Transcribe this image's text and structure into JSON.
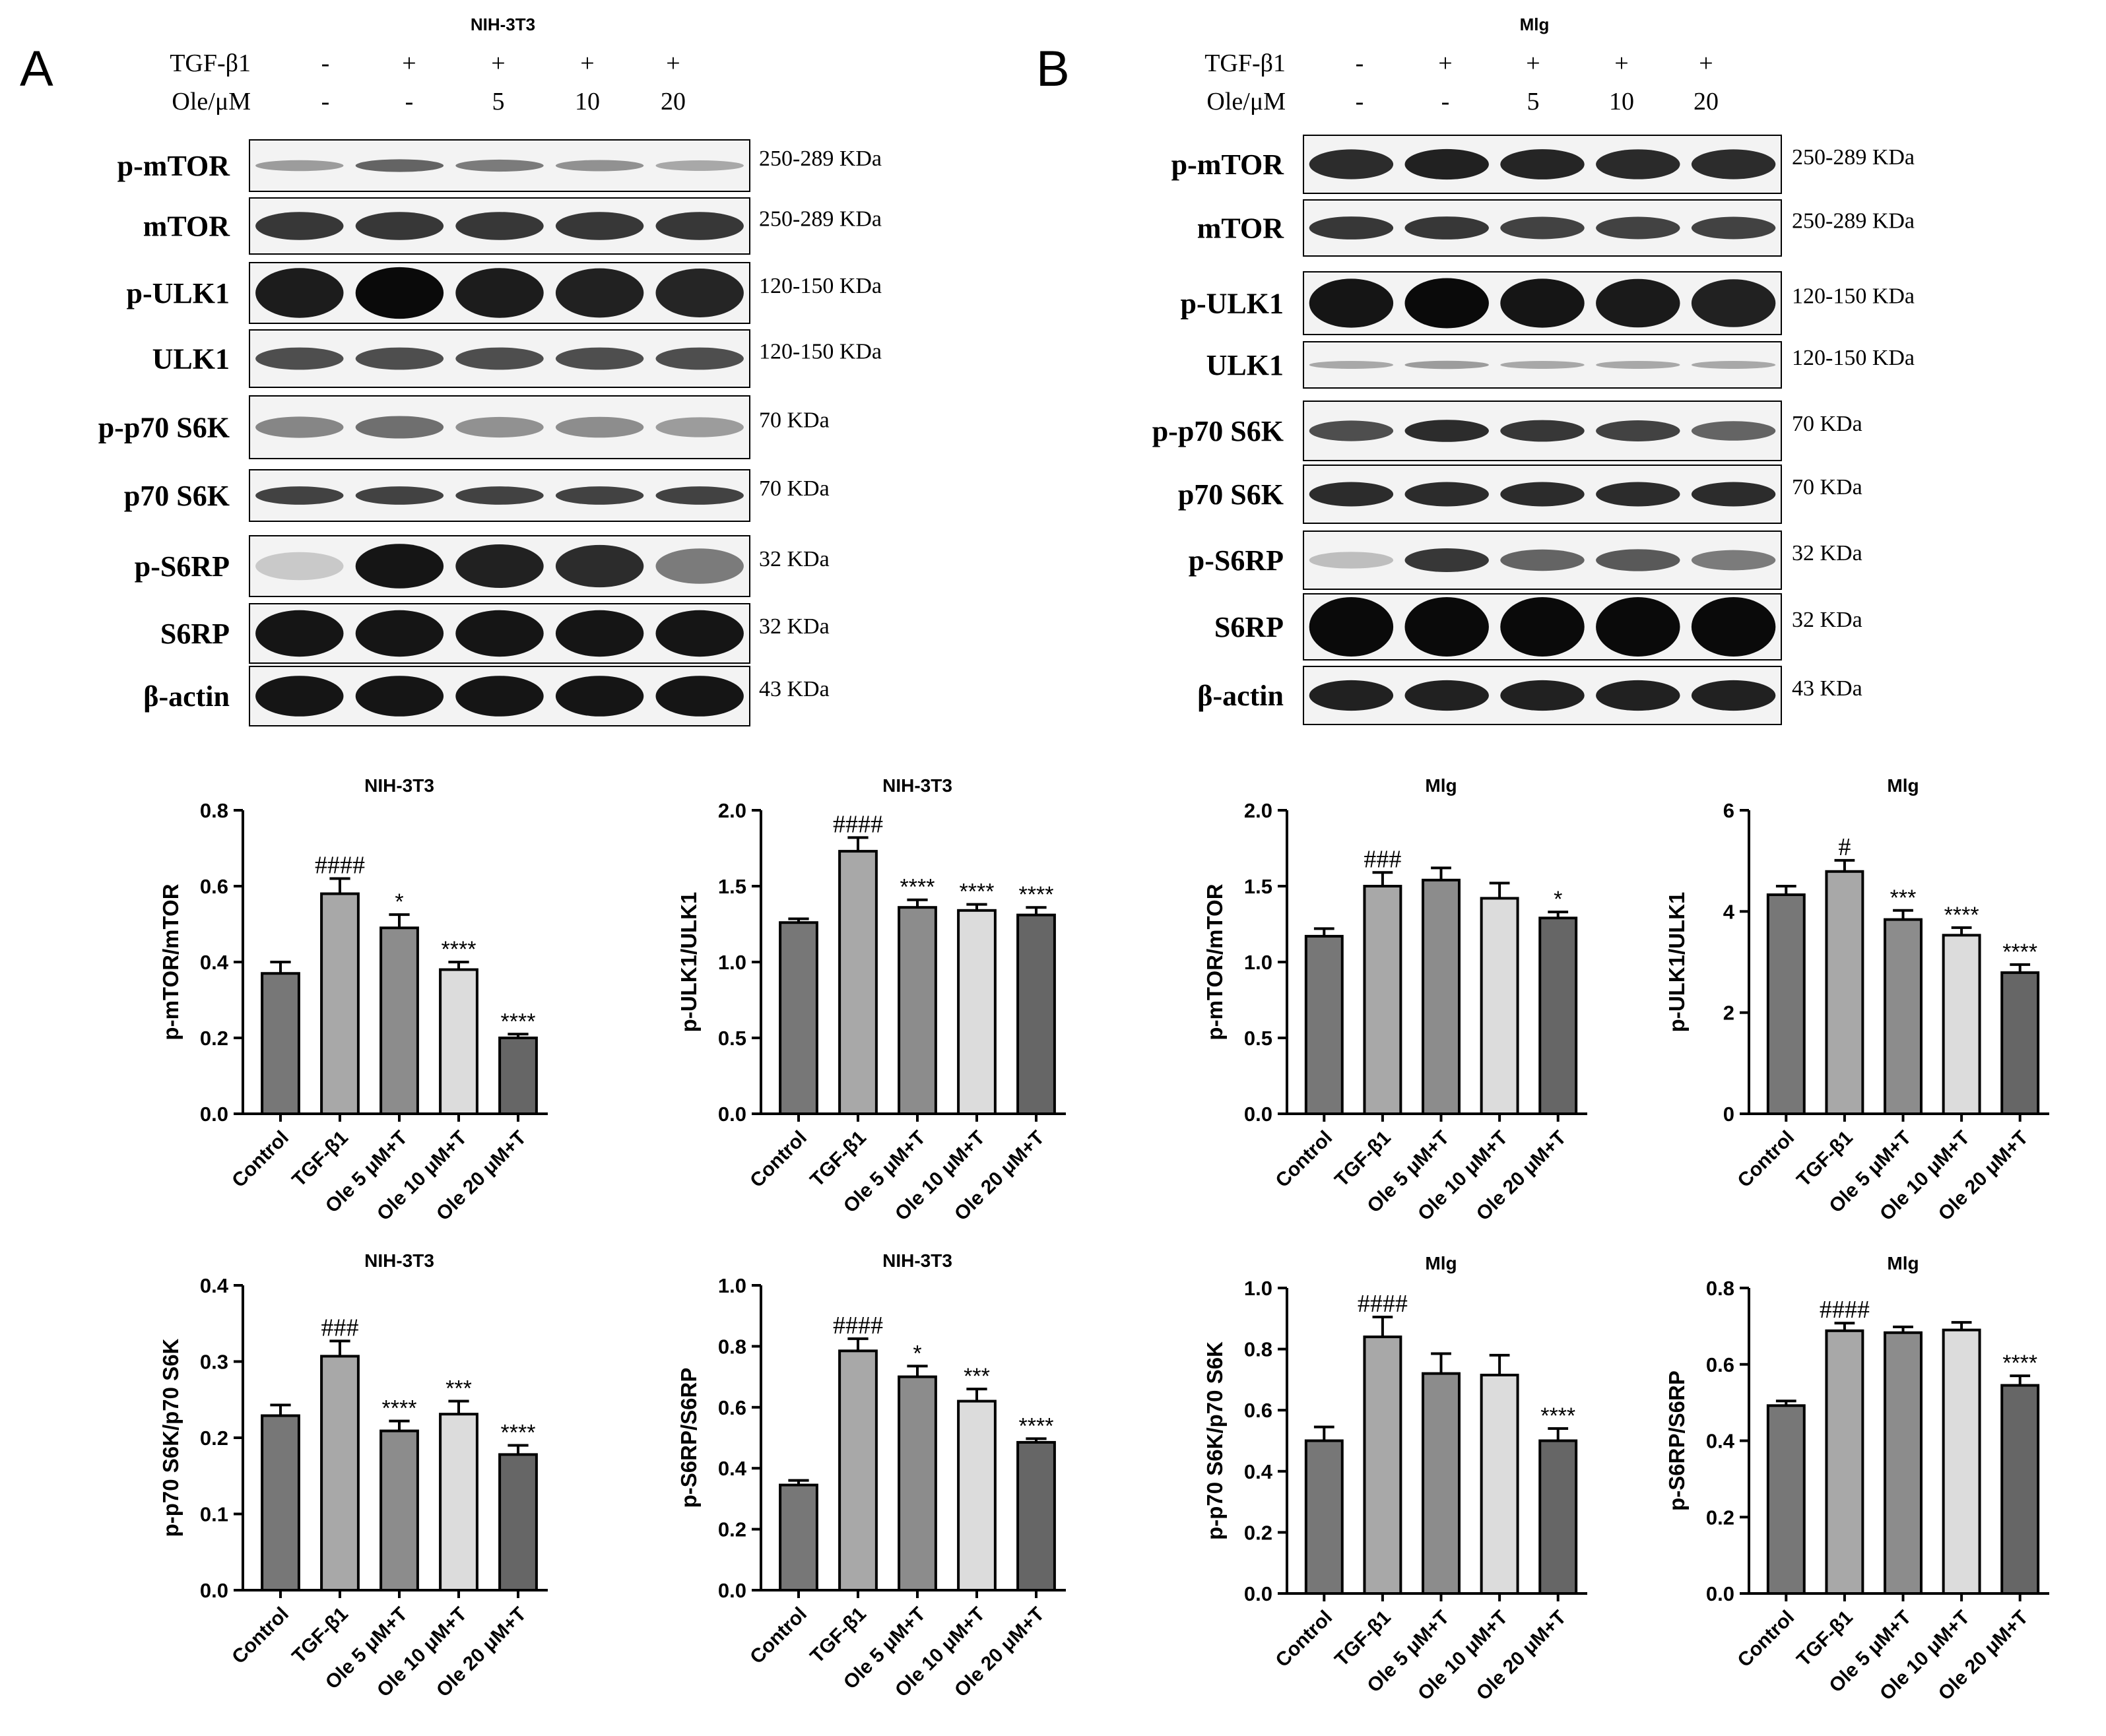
{
  "figure": {
    "panels": [
      {
        "letter": "A",
        "cell_line": "NIH-3T3",
        "treatments": [
          {
            "label": "TGF-β1",
            "values": [
              "-",
              "+",
              "+",
              "+",
              "+"
            ]
          },
          {
            "label": "Ole/μM",
            "values": [
              "-",
              "-",
              "5",
              "10",
              "20"
            ]
          }
        ],
        "blots": [
          {
            "protein": "p-mTOR",
            "size": "250-289 KDa",
            "band_intensity": [
              0.35,
              0.6,
              0.5,
              0.4,
              0.3
            ],
            "band_thickness": 0.3
          },
          {
            "protein": "mTOR",
            "size": "250-289 KDa",
            "band_intensity": [
              0.8,
              0.8,
              0.8,
              0.8,
              0.8
            ],
            "band_thickness": 0.55
          },
          {
            "protein": "p-ULK1",
            "size": "120-150 KDa",
            "band_intensity": [
              0.92,
              1.0,
              0.92,
              0.9,
              0.88
            ],
            "band_thickness": 0.85
          },
          {
            "protein": "ULK1",
            "size": "120-150 KDa",
            "band_intensity": [
              0.7,
              0.7,
              0.7,
              0.7,
              0.7
            ],
            "band_thickness": 0.45
          },
          {
            "protein": "p-p70 S6K",
            "size": "70 KDa",
            "band_intensity": [
              0.45,
              0.55,
              0.4,
              0.42,
              0.35
            ],
            "band_thickness": 0.45
          },
          {
            "protein": "p70 S6K",
            "size": "70 KDa",
            "band_intensity": [
              0.75,
              0.75,
              0.75,
              0.75,
              0.75
            ],
            "band_thickness": 0.4
          },
          {
            "protein": "p-S6RP",
            "size": "32 KDa",
            "band_intensity": [
              0.15,
              0.95,
              0.9,
              0.85,
              0.5
            ],
            "band_thickness": 0.75
          },
          {
            "protein": "S6RP",
            "size": "32 KDa",
            "band_intensity": [
              0.95,
              0.95,
              0.95,
              0.95,
              0.95
            ],
            "band_thickness": 0.8
          },
          {
            "protein": "β-actin",
            "size": "43 KDa",
            "band_intensity": [
              0.95,
              0.95,
              0.95,
              0.95,
              0.95
            ],
            "band_thickness": 0.7
          }
        ]
      },
      {
        "letter": "B",
        "cell_line": "Mlg",
        "treatments": [
          {
            "label": "TGF-β1",
            "values": [
              "-",
              "+",
              "+",
              "+",
              "+"
            ]
          },
          {
            "label": "Ole/μM",
            "values": [
              "-",
              "-",
              "5",
              "10",
              "20"
            ]
          }
        ],
        "blots": [
          {
            "protein": "p-mTOR",
            "size": "250-289 KDa",
            "band_intensity": [
              0.85,
              0.9,
              0.88,
              0.86,
              0.85
            ],
            "band_thickness": 0.55
          },
          {
            "protein": "mTOR",
            "size": "250-289 KDa",
            "band_intensity": [
              0.8,
              0.8,
              0.75,
              0.75,
              0.75
            ],
            "band_thickness": 0.45
          },
          {
            "protein": "p-ULK1",
            "size": "120-150 KDa",
            "band_intensity": [
              0.95,
              1.0,
              0.95,
              0.93,
              0.9
            ],
            "band_thickness": 0.8
          },
          {
            "protein": "ULK1",
            "size": "120-150 KDa",
            "band_intensity": [
              0.3,
              0.35,
              0.3,
              0.3,
              0.3
            ],
            "band_thickness": 0.25
          },
          {
            "protein": "p-p70 S6K",
            "size": "70 KDa",
            "band_intensity": [
              0.7,
              0.85,
              0.8,
              0.75,
              0.6
            ],
            "band_thickness": 0.4
          },
          {
            "protein": "p70 S6K",
            "size": "70 KDa",
            "band_intensity": [
              0.85,
              0.85,
              0.85,
              0.85,
              0.85
            ],
            "band_thickness": 0.45
          },
          {
            "protein": "p-S6RP",
            "size": "32 KDa",
            "band_intensity": [
              0.2,
              0.8,
              0.6,
              0.65,
              0.5
            ],
            "band_thickness": 0.45
          },
          {
            "protein": "S6RP",
            "size": "32 KDa",
            "band_intensity": [
              1.0,
              1.0,
              1.0,
              1.0,
              1.0
            ],
            "band_thickness": 0.9
          },
          {
            "protein": "β-actin",
            "size": "43 KDa",
            "band_intensity": [
              0.9,
              0.9,
              0.9,
              0.9,
              0.9
            ],
            "band_thickness": 0.55
          }
        ]
      }
    ]
  },
  "colors": {
    "bar_fills": [
      "#777777",
      "#a8a8a8",
      "#8c8c8c",
      "#dcdcdc",
      "#666666"
    ],
    "stroke": "#000000"
  },
  "chart_data": [
    {
      "type": "bar",
      "title": "NIH-3T3",
      "ylabel": "p-mTOR/mTOR",
      "ylim": [
        0,
        0.8
      ],
      "yticks": [
        "0.0",
        "0.2",
        "0.4",
        "0.6",
        "0.8"
      ],
      "categories": [
        "Control",
        "TGF-β1",
        "Ole 5 μM+T",
        "Ole 10 μM+T",
        "Ole 20 μM+T"
      ],
      "values": [
        0.37,
        0.58,
        0.49,
        0.38,
        0.2
      ],
      "errors": [
        0.03,
        0.04,
        0.035,
        0.02,
        0.01
      ],
      "annotations": [
        "",
        "####",
        "*",
        "****",
        "****"
      ]
    },
    {
      "type": "bar",
      "title": "NIH-3T3",
      "ylabel": "p-ULK1/ULK1",
      "ylim": [
        0,
        2.0
      ],
      "yticks": [
        "0.0",
        "0.5",
        "1.0",
        "1.5",
        "2.0"
      ],
      "categories": [
        "Control",
        "TGF-β1",
        "Ole 5 μM+T",
        "Ole 10 μM+T",
        "Ole 20 μM+T"
      ],
      "values": [
        1.26,
        1.73,
        1.36,
        1.34,
        1.31
      ],
      "errors": [
        0.025,
        0.09,
        0.05,
        0.04,
        0.05
      ],
      "annotations": [
        "",
        "####",
        "****",
        "****",
        "****"
      ]
    },
    {
      "type": "bar",
      "title": "Mlg",
      "ylabel": "p-mTOR/mTOR",
      "ylim": [
        0,
        2.0
      ],
      "yticks": [
        "0.0",
        "0.5",
        "1.0",
        "1.5",
        "2.0"
      ],
      "categories": [
        "Control",
        "TGF-β1",
        "Ole 5 μM+T",
        "Ole 10 μM+T",
        "Ole 20 μM+T"
      ],
      "values": [
        1.17,
        1.5,
        1.54,
        1.42,
        1.29
      ],
      "errors": [
        0.05,
        0.09,
        0.08,
        0.1,
        0.04
      ],
      "annotations": [
        "",
        "###",
        "",
        "",
        "*"
      ]
    },
    {
      "type": "bar",
      "title": "Mlg",
      "ylabel": "p-ULK1/ULK1",
      "ylim": [
        0,
        6
      ],
      "yticks": [
        "0",
        "2",
        "4",
        "6"
      ],
      "categories": [
        "Control",
        "TGF-β1",
        "Ole 5 μM+T",
        "Ole 10 μM+T",
        "Ole 20 μM+T"
      ],
      "values": [
        4.33,
        4.79,
        3.84,
        3.53,
        2.79
      ],
      "errors": [
        0.17,
        0.22,
        0.18,
        0.15,
        0.16
      ],
      "annotations": [
        "",
        "#",
        "***",
        "****",
        "****"
      ]
    },
    {
      "type": "bar",
      "title": "NIH-3T3",
      "ylabel": "p-p70 S6K/p70 S6K",
      "ylim": [
        0,
        0.4
      ],
      "yticks": [
        "0.0",
        "0.1",
        "0.2",
        "0.3",
        "0.4"
      ],
      "categories": [
        "Control",
        "TGF-β1",
        "Ole 5 μM+T",
        "Ole 10 μM+T",
        "Ole 20 μM+T"
      ],
      "values": [
        0.229,
        0.307,
        0.209,
        0.231,
        0.178
      ],
      "errors": [
        0.014,
        0.02,
        0.013,
        0.017,
        0.012
      ],
      "annotations": [
        "",
        "###",
        "****",
        "***",
        "****"
      ]
    },
    {
      "type": "bar",
      "title": "NIH-3T3",
      "ylabel": "p-S6RP/S6RP",
      "ylim": [
        0,
        1.0
      ],
      "yticks": [
        "0.0",
        "0.2",
        "0.4",
        "0.6",
        "0.8",
        "1.0"
      ],
      "categories": [
        "Control",
        "TGF-β1",
        "Ole 5 μM+T",
        "Ole 10 μM+T",
        "Ole 20 μM+T"
      ],
      "values": [
        0.345,
        0.785,
        0.7,
        0.62,
        0.485
      ],
      "errors": [
        0.015,
        0.04,
        0.035,
        0.04,
        0.012
      ],
      "annotations": [
        "",
        "####",
        "*",
        "***",
        "****"
      ]
    },
    {
      "type": "bar",
      "title": "Mlg",
      "ylabel": "p-p70 S6K/p70 S6K",
      "ylim": [
        0,
        1.0
      ],
      "yticks": [
        "0.0",
        "0.2",
        "0.4",
        "0.6",
        "0.8",
        "1.0"
      ],
      "categories": [
        "Control",
        "TGF-β1",
        "Ole 5 μM+T",
        "Ole 10 μM+T",
        "Ole 20 μM+T"
      ],
      "values": [
        0.5,
        0.84,
        0.72,
        0.715,
        0.5
      ],
      "errors": [
        0.045,
        0.065,
        0.065,
        0.065,
        0.04
      ],
      "annotations": [
        "",
        "####",
        "",
        "",
        "****"
      ]
    },
    {
      "type": "bar",
      "title": "Mlg",
      "ylabel": "p-S6RP/S6RP",
      "ylim": [
        0,
        0.8
      ],
      "yticks": [
        "0.0",
        "0.2",
        "0.4",
        "0.6",
        "0.8"
      ],
      "categories": [
        "Control",
        "TGF-β1",
        "Ole 5 μM+T",
        "Ole 10 μM+T",
        "Ole 20 μM+T"
      ],
      "values": [
        0.492,
        0.688,
        0.683,
        0.69,
        0.545
      ],
      "errors": [
        0.012,
        0.02,
        0.015,
        0.02,
        0.025
      ],
      "annotations": [
        "",
        "####",
        "",
        "",
        "****"
      ]
    }
  ]
}
